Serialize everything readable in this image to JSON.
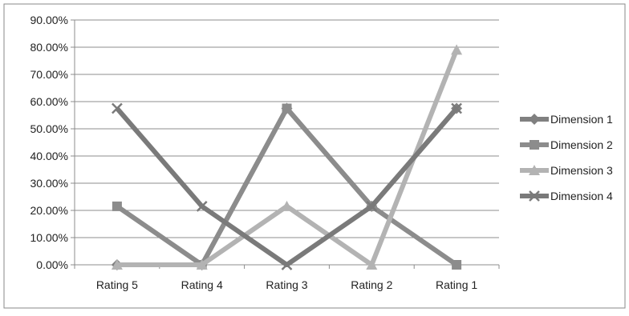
{
  "chart_data": {
    "type": "line",
    "title": "",
    "xlabel": "",
    "ylabel": "",
    "categories": [
      "Rating 5",
      "Rating 4",
      "Rating 3",
      "Rating 2",
      "Rating 1"
    ],
    "yticks": [
      "0.00%",
      "10.00%",
      "20.00%",
      "30.00%",
      "40.00%",
      "50.00%",
      "60.00%",
      "70.00%",
      "80.00%",
      "90.00%"
    ],
    "ylim": [
      0,
      90
    ],
    "grid": true,
    "legend_position": "right",
    "series": [
      {
        "name": "Dimension 1",
        "marker": "diamond",
        "color": "#808080",
        "values": [
          0,
          0,
          57.5,
          21.5,
          57.5
        ]
      },
      {
        "name": "Dimension 2",
        "marker": "square",
        "color": "#8c8c8c",
        "values": [
          21.5,
          0,
          57.5,
          21.5,
          0
        ]
      },
      {
        "name": "Dimension 3",
        "marker": "triangle",
        "color": "#b3b3b3",
        "values": [
          0,
          0,
          21.5,
          0,
          79
        ]
      },
      {
        "name": "Dimension 4",
        "marker": "x",
        "color": "#7a7a7a",
        "values": [
          57.5,
          21.5,
          0,
          21.5,
          57.5
        ]
      }
    ]
  }
}
